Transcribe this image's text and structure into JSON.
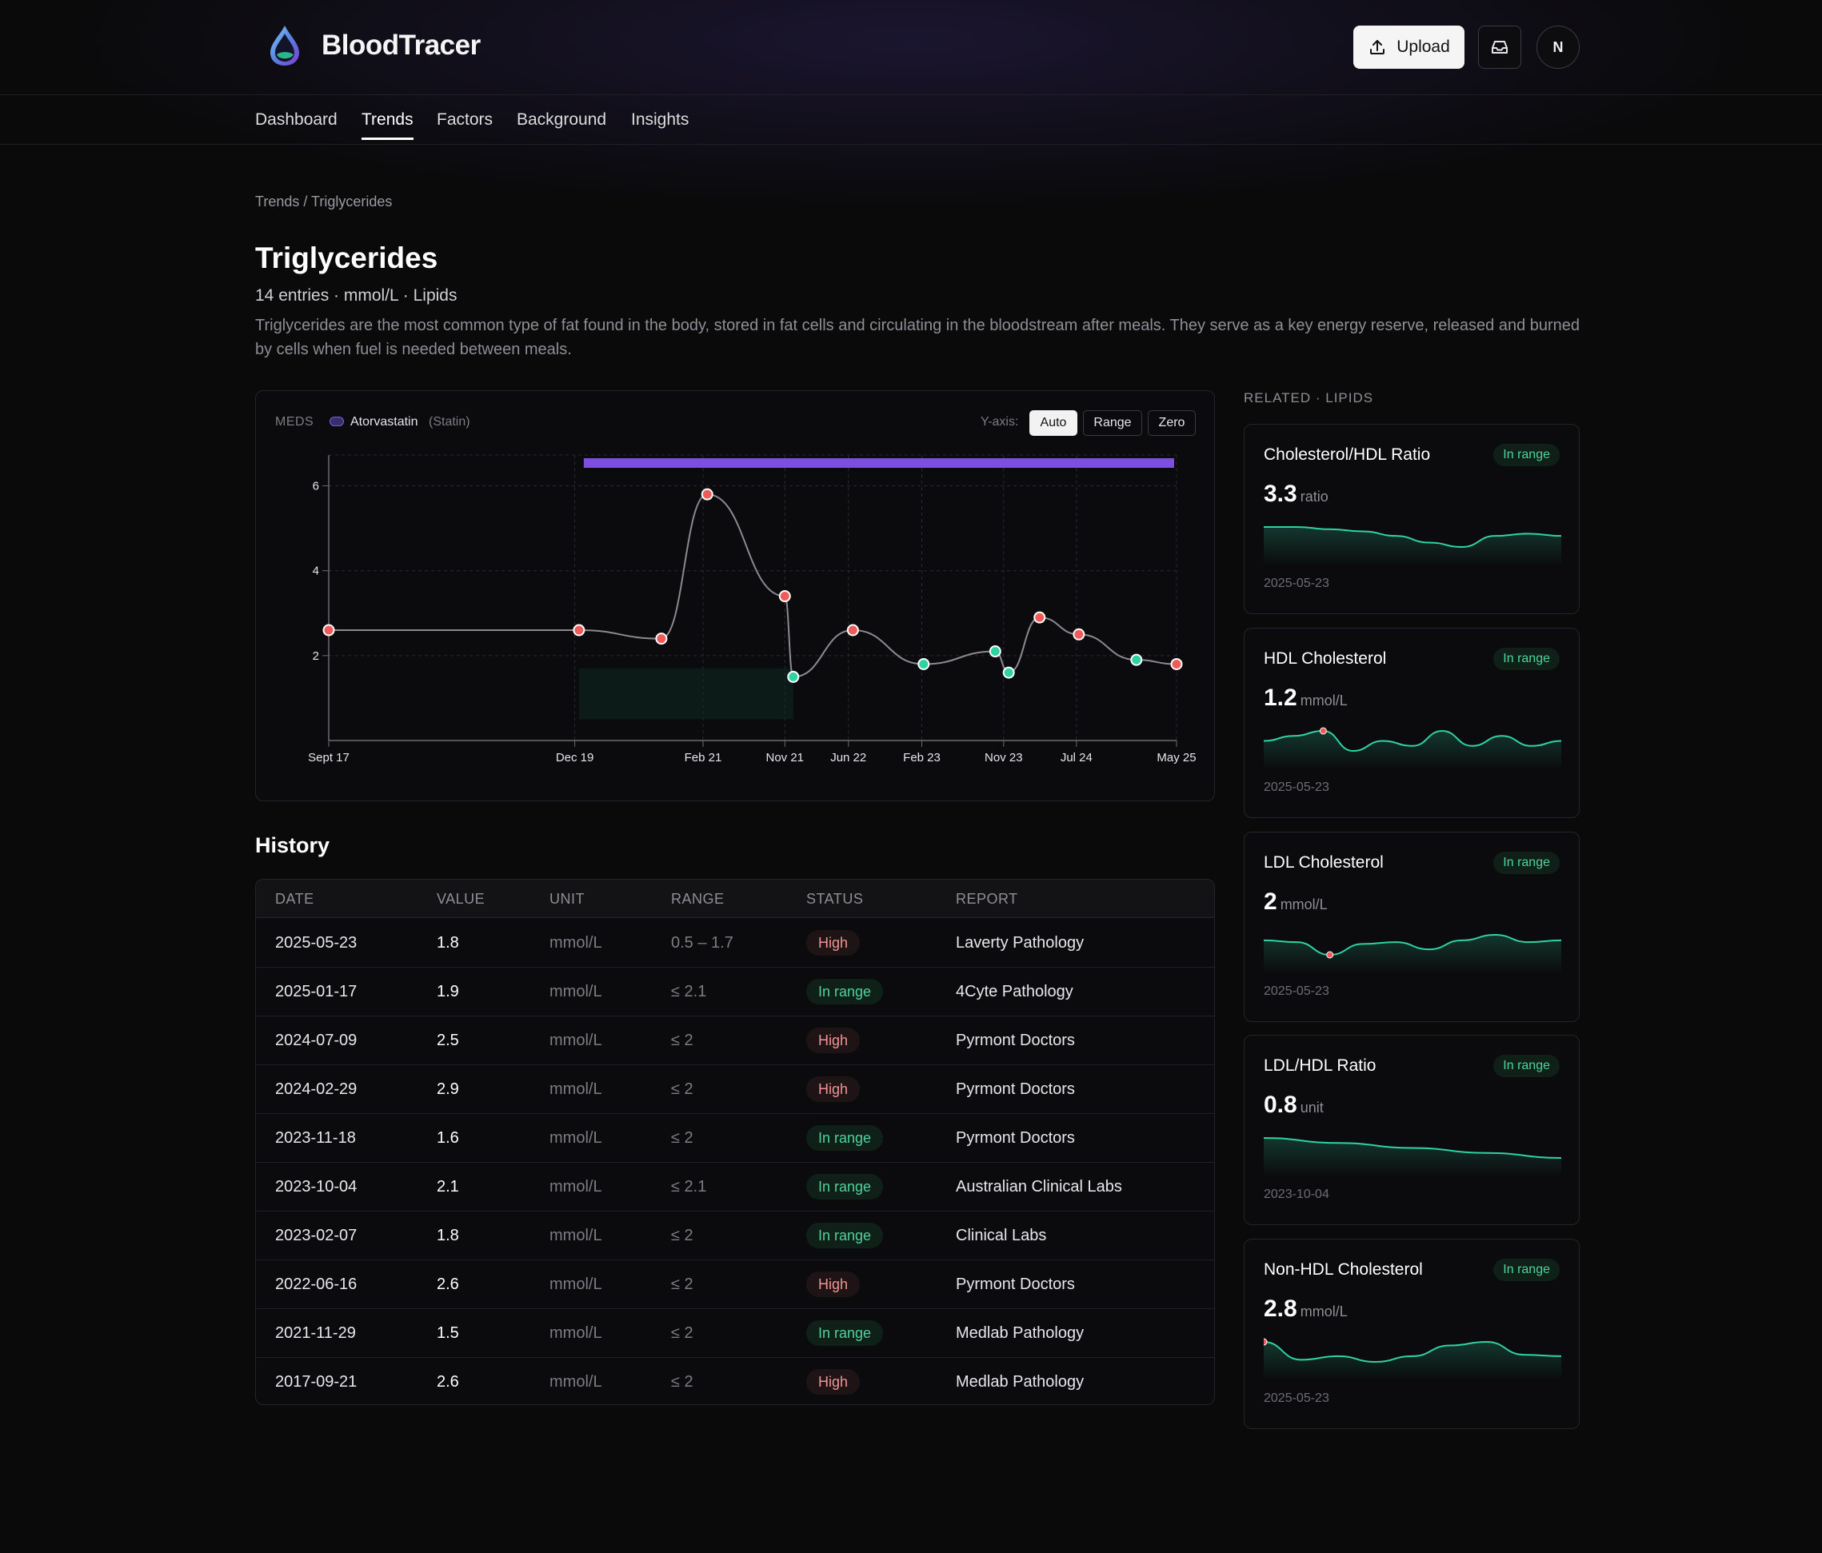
{
  "app": {
    "name": "BloodTracer",
    "upload_label": "Upload",
    "avatar_initial": "N"
  },
  "nav": {
    "items": [
      "Dashboard",
      "Trends",
      "Factors",
      "Background",
      "Insights"
    ],
    "active": "Trends"
  },
  "breadcrumb": "Trends / Triglycerides",
  "page": {
    "title": "Triglycerides",
    "subtitle": "14 entries · mmol/L · Lipids",
    "description": "Triglycerides are the most common type of fat found in the body, stored in fat cells and circulating in the bloodstream after meals. They serve as a key energy reserve, released and burned by cells when fuel is needed between meals."
  },
  "chart_controls": {
    "meds_label": "MEDS",
    "med_name": "Atorvastatin",
    "med_class": "(Statin)",
    "yaxis_label": "Y-axis:",
    "yaxis_options": [
      "Auto",
      "Range",
      "Zero"
    ],
    "yaxis_active": "Auto"
  },
  "chart_data": {
    "type": "line",
    "title": "",
    "xlabel": "",
    "ylabel": "",
    "x_ticks": [
      "Sept 17",
      "Dec 19",
      "Feb 21",
      "Nov 21",
      "Jun 22",
      "Feb 23",
      "Nov 23",
      "Jul 24",
      "May 25"
    ],
    "y_ticks": [
      2,
      4,
      6
    ],
    "ylim": [
      0,
      6.5
    ],
    "grid": true,
    "legend": "none",
    "series": [
      {
        "points": [
          {
            "x": "2017-09-21",
            "y": 2.6,
            "status": "high"
          },
          {
            "x": "2019-12-15",
            "y": 2.6,
            "status": "high"
          },
          {
            "x": "2020-09-15",
            "y": 2.4,
            "status": "high"
          },
          {
            "x": "2021-02-15",
            "y": 5.8,
            "status": "high"
          },
          {
            "x": "2021-11-01",
            "y": 3.4,
            "status": "high"
          },
          {
            "x": "2021-11-29",
            "y": 1.5,
            "status": "ok"
          },
          {
            "x": "2022-06-16",
            "y": 2.6,
            "status": "high"
          },
          {
            "x": "2023-02-07",
            "y": 1.8,
            "status": "ok"
          },
          {
            "x": "2023-10-04",
            "y": 2.1,
            "status": "ok"
          },
          {
            "x": "2023-11-18",
            "y": 1.6,
            "status": "ok"
          },
          {
            "x": "2024-02-29",
            "y": 2.9,
            "status": "high"
          },
          {
            "x": "2024-07-09",
            "y": 2.5,
            "status": "high"
          },
          {
            "x": "2025-01-17",
            "y": 1.9,
            "status": "ok"
          },
          {
            "x": "2025-05-23",
            "y": 1.8,
            "status": "high"
          }
        ]
      }
    ],
    "medication_band": {
      "label": "Atorvastatin",
      "start": "2019-12-15",
      "end": "2025-05-23"
    },
    "reference_band": {
      "start": "2019-12-15",
      "end": "2021-11-29",
      "low": 0.5,
      "high": 1.7
    }
  },
  "history": {
    "title": "History",
    "headers": [
      "DATE",
      "VALUE",
      "UNIT",
      "RANGE",
      "STATUS",
      "REPORT"
    ],
    "rows": [
      {
        "date": "2025-05-23",
        "value": "1.8",
        "unit": "mmol/L",
        "range": "0.5 – 1.7",
        "status": "High",
        "report": "Laverty Pathology"
      },
      {
        "date": "2025-01-17",
        "value": "1.9",
        "unit": "mmol/L",
        "range": "≤ 2.1",
        "status": "In range",
        "report": "4Cyte Pathology"
      },
      {
        "date": "2024-07-09",
        "value": "2.5",
        "unit": "mmol/L",
        "range": "≤ 2",
        "status": "High",
        "report": "Pyrmont Doctors"
      },
      {
        "date": "2024-02-29",
        "value": "2.9",
        "unit": "mmol/L",
        "range": "≤ 2",
        "status": "High",
        "report": "Pyrmont Doctors"
      },
      {
        "date": "2023-11-18",
        "value": "1.6",
        "unit": "mmol/L",
        "range": "≤ 2",
        "status": "In range",
        "report": "Pyrmont Doctors"
      },
      {
        "date": "2023-10-04",
        "value": "2.1",
        "unit": "mmol/L",
        "range": "≤ 2.1",
        "status": "In range",
        "report": "Australian Clinical Labs"
      },
      {
        "date": "2023-02-07",
        "value": "1.8",
        "unit": "mmol/L",
        "range": "≤ 2",
        "status": "In range",
        "report": "Clinical Labs"
      },
      {
        "date": "2022-06-16",
        "value": "2.6",
        "unit": "mmol/L",
        "range": "≤ 2",
        "status": "High",
        "report": "Pyrmont Doctors"
      },
      {
        "date": "2021-11-29",
        "value": "1.5",
        "unit": "mmol/L",
        "range": "≤ 2",
        "status": "In range",
        "report": "Medlab Pathology"
      },
      {
        "date": "2017-09-21",
        "value": "2.6",
        "unit": "mmol/L",
        "range": "≤ 2",
        "status": "High",
        "report": "Medlab Pathology"
      }
    ]
  },
  "related": {
    "title": "RELATED · LIPIDS",
    "cards": [
      {
        "name": "Cholesterol/HDL Ratio",
        "badge": "In range",
        "value": "3.3",
        "unit": "ratio",
        "date": "2025-05-23",
        "spark": [
          3.5,
          3.5,
          3.45,
          3.4,
          3.3,
          3.15,
          3.05,
          3.3,
          3.35,
          3.3
        ],
        "spark_flag_index": -1
      },
      {
        "name": "HDL Cholesterol",
        "badge": "In range",
        "value": "1.2",
        "unit": "mmol/L",
        "date": "2025-05-23",
        "spark": [
          1.2,
          1.25,
          1.3,
          1.1,
          1.2,
          1.15,
          1.3,
          1.15,
          1.25,
          1.15,
          1.2
        ],
        "spark_flag_index": 2
      },
      {
        "name": "LDL Cholesterol",
        "badge": "In range",
        "value": "2",
        "unit": "mmol/L",
        "date": "2025-05-23",
        "spark": [
          2.3,
          2.25,
          1.9,
          2.2,
          2.25,
          2.05,
          2.3,
          2.45,
          2.25,
          2.3
        ],
        "spark_flag_index": 2
      },
      {
        "name": "LDL/HDL Ratio",
        "badge": "In range",
        "value": "0.8",
        "unit": "unit",
        "date": "2023-10-04",
        "spark": [
          1.0,
          0.95,
          0.9,
          0.85,
          0.8
        ],
        "spark_flag_index": -1
      },
      {
        "name": "Non-HDL Cholesterol",
        "badge": "In range",
        "value": "2.8",
        "unit": "mmol/L",
        "date": "2025-05-23",
        "spark": [
          3.0,
          2.75,
          2.8,
          2.72,
          2.8,
          2.95,
          3.0,
          2.82,
          2.8
        ],
        "spark_flag_index": 0
      }
    ]
  },
  "colors": {
    "high": "#ef5a5a",
    "ok": "#2fd3a0",
    "med_band": "#7c4fe0",
    "line": "#8a8a90"
  }
}
